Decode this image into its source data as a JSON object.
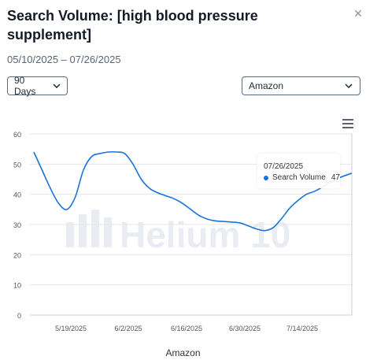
{
  "dialog": {
    "title": "Search Volume: [high blood pressure supplement]",
    "date_range": "05/10/2025 – 07/26/2025",
    "close_icon": "close-icon"
  },
  "controls": {
    "period_label": "90 Days",
    "marketplace_label": "Amazon"
  },
  "watermark": "Helium 10",
  "colors": {
    "line": "#1a73d9",
    "grid": "#e6e6e6",
    "watermark": "#e9edf3"
  },
  "tooltip": {
    "date": "07/26/2025",
    "series": "Search Volume",
    "value": "47"
  },
  "chart_data": {
    "type": "line",
    "xlabel": "Amazon",
    "ylabel": "",
    "ylim": [
      0,
      60
    ],
    "yticks": [
      0,
      10,
      20,
      30,
      40,
      50,
      60
    ],
    "xtick_labels": [
      "5/19/2025",
      "6/2/2025",
      "6/16/2025",
      "6/30/2025",
      "7/14/2025"
    ],
    "series": [
      {
        "x": [
          "05/10/2025",
          "05/12/2025",
          "05/14/2025",
          "05/16/2025",
          "05/18/2025",
          "05/20/2025",
          "05/22/2025",
          "05/24/2025",
          "05/26/2025",
          "05/28/2025",
          "05/30/2025",
          "06/01/2025",
          "06/03/2025",
          "06/05/2025",
          "06/07/2025",
          "06/09/2025",
          "06/11/2025",
          "06/13/2025",
          "06/15/2025",
          "06/17/2025",
          "06/19/2025",
          "06/21/2025",
          "06/23/2025",
          "06/25/2025",
          "06/27/2025",
          "06/29/2025",
          "07/01/2025",
          "07/03/2025",
          "07/05/2025",
          "07/07/2025",
          "07/09/2025",
          "07/11/2025",
          "07/13/2025",
          "07/15/2025",
          "07/17/2025",
          "07/19/2025",
          "07/21/2025",
          "07/23/2025",
          "07/26/2025"
        ],
        "values": [
          54,
          48,
          42,
          37,
          35,
          39,
          48,
          52.5,
          53.5,
          54,
          54,
          53.5,
          50,
          45,
          42,
          40.5,
          39.5,
          38.5,
          37,
          35,
          33,
          31.8,
          31.2,
          31,
          30.8,
          30.5,
          29.5,
          28.5,
          28,
          29,
          32,
          35.5,
          38,
          40,
          41,
          42.5,
          44,
          45.5,
          47
        ]
      }
    ]
  }
}
